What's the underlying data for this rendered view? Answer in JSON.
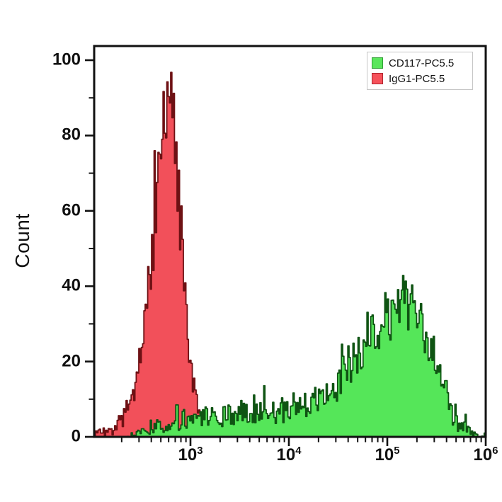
{
  "figure": {
    "background": "#ffffff"
  },
  "chart_data": {
    "type": "area",
    "subtype": "flow-cytometry-histogram-overlay",
    "title": "",
    "xlabel": "",
    "ylabel": "Count",
    "x_scale": "log10",
    "x_range": [
      105,
      1000000
    ],
    "ylim": [
      0,
      100
    ],
    "grid": false,
    "axis_color": "#111111",
    "y_ticks": [
      0,
      20,
      40,
      60,
      80,
      100
    ],
    "y_minor_ticks": [
      10,
      30,
      50,
      70,
      90
    ],
    "x_tick_base": "10",
    "x_tick_exponents": [
      3,
      4,
      5,
      6
    ],
    "x_tick_labels": [
      "10^3",
      "10^4",
      "10^5",
      "10^6"
    ],
    "legend_position": "top-right",
    "draw_order": [
      1,
      0
    ],
    "series": [
      {
        "name": "CD117-PC5.5",
        "fill": "#55e659",
        "stroke": "#0f5413",
        "legend_swatch_fill": "#5ae65c",
        "legend_swatch_border": "#2f9e33",
        "peak": {
          "x": 140000,
          "count": 41
        },
        "noise": 1.25,
        "seed": 13,
        "clip": 43,
        "anchors_log10x_count": [
          [
            2.35,
            0
          ],
          [
            2.5,
            1.5
          ],
          [
            2.6,
            2.5
          ],
          [
            2.7,
            3
          ],
          [
            2.8,
            3.5
          ],
          [
            2.9,
            4
          ],
          [
            3.05,
            4.5
          ],
          [
            3.2,
            5
          ],
          [
            3.35,
            5.5
          ],
          [
            3.5,
            6
          ],
          [
            3.65,
            6.5
          ],
          [
            3.8,
            7
          ],
          [
            3.95,
            7.5
          ],
          [
            4.1,
            8.5
          ],
          [
            4.25,
            9.5
          ],
          [
            4.35,
            11
          ],
          [
            4.45,
            13
          ],
          [
            4.55,
            16
          ],
          [
            4.65,
            19
          ],
          [
            4.75,
            23
          ],
          [
            4.85,
            27
          ],
          [
            4.95,
            31
          ],
          [
            5.05,
            33
          ],
          [
            5.12,
            34.5
          ],
          [
            5.2,
            34
          ],
          [
            5.28,
            32
          ],
          [
            5.35,
            29
          ],
          [
            5.42,
            25
          ],
          [
            5.48,
            21
          ],
          [
            5.53,
            16
          ],
          [
            5.58,
            11
          ],
          [
            5.63,
            7
          ],
          [
            5.68,
            4.5
          ],
          [
            5.74,
            3
          ],
          [
            5.8,
            1.8
          ],
          [
            5.87,
            1
          ],
          [
            5.95,
            0.4
          ],
          [
            6.0,
            0
          ]
        ]
      },
      {
        "name": "IgG1-PC5.5",
        "fill": "#f2505a",
        "stroke": "#6e1114",
        "legend_swatch_fill": "#f6525b",
        "legend_swatch_border": "#b02530",
        "peak": {
          "x": 600,
          "count": 98
        },
        "noise": 1.15,
        "seed": 7,
        "clip": 99,
        "anchors_log10x_count": [
          [
            2.02,
            1
          ],
          [
            2.1,
            1.5
          ],
          [
            2.16,
            1
          ],
          [
            2.22,
            2
          ],
          [
            2.28,
            3.5
          ],
          [
            2.34,
            6
          ],
          [
            2.4,
            10
          ],
          [
            2.45,
            16
          ],
          [
            2.5,
            24
          ],
          [
            2.55,
            35
          ],
          [
            2.6,
            48
          ],
          [
            2.64,
            60
          ],
          [
            2.68,
            71
          ],
          [
            2.72,
            81
          ],
          [
            2.75,
            87
          ],
          [
            2.78,
            91
          ],
          [
            2.8,
            89
          ],
          [
            2.83,
            80
          ],
          [
            2.86,
            69
          ],
          [
            2.89,
            57
          ],
          [
            2.92,
            45
          ],
          [
            2.95,
            33
          ],
          [
            2.98,
            23
          ],
          [
            3.01,
            15
          ],
          [
            3.05,
            9
          ],
          [
            3.09,
            5
          ],
          [
            3.13,
            2.8
          ],
          [
            3.18,
            1.4
          ],
          [
            3.24,
            0.7
          ],
          [
            3.32,
            0.3
          ],
          [
            3.4,
            0
          ]
        ]
      }
    ]
  }
}
